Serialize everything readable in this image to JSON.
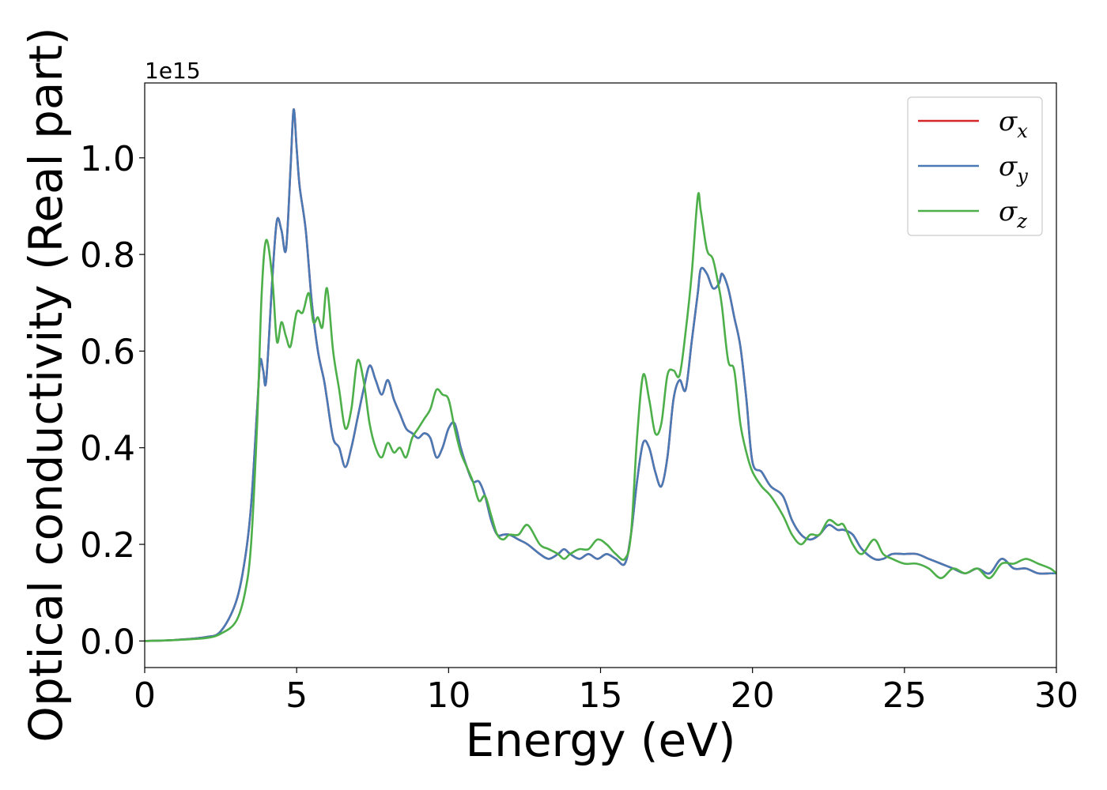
{
  "chart_data": {
    "type": "line",
    "title": "",
    "xlabel": "Energy (eV)",
    "ylabel": "Optical conductivity (Real part)",
    "y_offset_text": "1e15",
    "xlim": [
      0,
      30
    ],
    "ylim": [
      -0.055,
      1.155
    ],
    "x_ticks": [
      0,
      5,
      10,
      15,
      20,
      25,
      30
    ],
    "x_tick_labels": [
      "0",
      "5",
      "10",
      "15",
      "20",
      "25",
      "30"
    ],
    "y_ticks": [
      0.0,
      0.2,
      0.4,
      0.6,
      0.8,
      1.0
    ],
    "y_tick_labels": [
      "0.0",
      "0.2",
      "0.4",
      "0.6",
      "0.8",
      "1.0"
    ],
    "grid": false,
    "legend_position": "top-right",
    "series": [
      {
        "name": "σx",
        "symbol": "σ",
        "subscript": "x",
        "color": "#d62728",
        "x": [
          0,
          1,
          2,
          2.5,
          3,
          3.3,
          3.5,
          3.7,
          3.8,
          3.9,
          4.0,
          4.2,
          4.35,
          4.5,
          4.65,
          4.8,
          4.9,
          5.0,
          5.1,
          5.3,
          5.5,
          5.7,
          5.9,
          6.0,
          6.2,
          6.4,
          6.6,
          6.8,
          7.0,
          7.2,
          7.4,
          7.6,
          7.8,
          8.0,
          8.2,
          8.4,
          8.6,
          8.8,
          9.0,
          9.2,
          9.4,
          9.6,
          9.8,
          10.0,
          10.2,
          10.4,
          10.6,
          10.8,
          11.0,
          11.2,
          11.4,
          11.6,
          11.8,
          12.0,
          12.3,
          12.6,
          13.0,
          13.3,
          13.6,
          13.8,
          14.0,
          14.3,
          14.6,
          14.9,
          15.2,
          15.5,
          15.8,
          16.0,
          16.2,
          16.4,
          16.6,
          16.8,
          17.0,
          17.2,
          17.4,
          17.6,
          17.8,
          18.0,
          18.2,
          18.3,
          18.5,
          18.7,
          18.9,
          19.0,
          19.2,
          19.4,
          19.6,
          19.8,
          20.0,
          20.3,
          20.6,
          21.0,
          21.3,
          21.6,
          21.9,
          22.2,
          22.5,
          22.8,
          23.0,
          23.3,
          23.6,
          24.0,
          24.3,
          24.6,
          25.0,
          25.4,
          25.8,
          26.2,
          26.6,
          27.0,
          27.4,
          27.8,
          28.2,
          28.6,
          29.0,
          29.4,
          29.8,
          30.0
        ],
        "y": [
          0.0,
          0.002,
          0.008,
          0.02,
          0.08,
          0.17,
          0.28,
          0.48,
          0.58,
          0.56,
          0.54,
          0.75,
          0.87,
          0.85,
          0.81,
          0.98,
          1.1,
          1.02,
          0.94,
          0.85,
          0.7,
          0.6,
          0.54,
          0.5,
          0.42,
          0.4,
          0.36,
          0.4,
          0.46,
          0.52,
          0.57,
          0.54,
          0.51,
          0.54,
          0.5,
          0.47,
          0.44,
          0.43,
          0.42,
          0.43,
          0.42,
          0.38,
          0.4,
          0.44,
          0.45,
          0.4,
          0.36,
          0.33,
          0.33,
          0.3,
          0.25,
          0.22,
          0.22,
          0.22,
          0.21,
          0.2,
          0.18,
          0.17,
          0.18,
          0.19,
          0.18,
          0.17,
          0.18,
          0.17,
          0.18,
          0.17,
          0.16,
          0.22,
          0.33,
          0.41,
          0.4,
          0.35,
          0.32,
          0.38,
          0.5,
          0.54,
          0.52,
          0.62,
          0.72,
          0.77,
          0.76,
          0.73,
          0.74,
          0.76,
          0.73,
          0.67,
          0.61,
          0.5,
          0.37,
          0.35,
          0.32,
          0.3,
          0.25,
          0.22,
          0.21,
          0.22,
          0.24,
          0.23,
          0.23,
          0.22,
          0.19,
          0.17,
          0.17,
          0.18,
          0.18,
          0.18,
          0.17,
          0.16,
          0.15,
          0.14,
          0.15,
          0.14,
          0.17,
          0.15,
          0.15,
          0.14,
          0.14,
          0.14
        ]
      },
      {
        "name": "σy",
        "symbol": "σ",
        "subscript": "y",
        "color": "#4a7ab6",
        "x": [
          0,
          1,
          2,
          2.5,
          3,
          3.3,
          3.5,
          3.7,
          3.8,
          3.9,
          4.0,
          4.2,
          4.35,
          4.5,
          4.65,
          4.8,
          4.9,
          5.0,
          5.1,
          5.3,
          5.5,
          5.7,
          5.9,
          6.0,
          6.2,
          6.4,
          6.6,
          6.8,
          7.0,
          7.2,
          7.4,
          7.6,
          7.8,
          8.0,
          8.2,
          8.4,
          8.6,
          8.8,
          9.0,
          9.2,
          9.4,
          9.6,
          9.8,
          10.0,
          10.2,
          10.4,
          10.6,
          10.8,
          11.0,
          11.2,
          11.4,
          11.6,
          11.8,
          12.0,
          12.3,
          12.6,
          13.0,
          13.3,
          13.6,
          13.8,
          14.0,
          14.3,
          14.6,
          14.9,
          15.2,
          15.5,
          15.8,
          16.0,
          16.2,
          16.4,
          16.6,
          16.8,
          17.0,
          17.2,
          17.4,
          17.6,
          17.8,
          18.0,
          18.2,
          18.3,
          18.5,
          18.7,
          18.9,
          19.0,
          19.2,
          19.4,
          19.6,
          19.8,
          20.0,
          20.3,
          20.6,
          21.0,
          21.3,
          21.6,
          21.9,
          22.2,
          22.5,
          22.8,
          23.0,
          23.3,
          23.6,
          24.0,
          24.3,
          24.6,
          25.0,
          25.4,
          25.8,
          26.2,
          26.6,
          27.0,
          27.4,
          27.8,
          28.2,
          28.6,
          29.0,
          29.4,
          29.8,
          30.0
        ],
        "y": [
          0.0,
          0.002,
          0.008,
          0.02,
          0.08,
          0.17,
          0.28,
          0.48,
          0.58,
          0.56,
          0.54,
          0.75,
          0.87,
          0.85,
          0.81,
          0.98,
          1.1,
          1.02,
          0.94,
          0.85,
          0.7,
          0.6,
          0.54,
          0.5,
          0.42,
          0.4,
          0.36,
          0.4,
          0.46,
          0.52,
          0.57,
          0.54,
          0.51,
          0.54,
          0.5,
          0.47,
          0.44,
          0.43,
          0.42,
          0.43,
          0.42,
          0.38,
          0.4,
          0.44,
          0.45,
          0.4,
          0.36,
          0.33,
          0.33,
          0.3,
          0.25,
          0.22,
          0.22,
          0.22,
          0.21,
          0.2,
          0.18,
          0.17,
          0.18,
          0.19,
          0.18,
          0.17,
          0.18,
          0.17,
          0.18,
          0.17,
          0.16,
          0.22,
          0.33,
          0.41,
          0.4,
          0.35,
          0.32,
          0.38,
          0.5,
          0.54,
          0.52,
          0.62,
          0.72,
          0.77,
          0.76,
          0.73,
          0.74,
          0.76,
          0.73,
          0.67,
          0.61,
          0.5,
          0.37,
          0.35,
          0.32,
          0.3,
          0.25,
          0.22,
          0.21,
          0.22,
          0.24,
          0.23,
          0.23,
          0.22,
          0.19,
          0.17,
          0.17,
          0.18,
          0.18,
          0.18,
          0.17,
          0.16,
          0.15,
          0.14,
          0.15,
          0.14,
          0.17,
          0.15,
          0.15,
          0.14,
          0.14,
          0.14
        ]
      },
      {
        "name": "σz",
        "symbol": "σ",
        "subscript": "z",
        "color": "#4daf4a",
        "x": [
          0,
          1,
          2,
          2.5,
          3,
          3.3,
          3.5,
          3.7,
          3.85,
          4.0,
          4.2,
          4.35,
          4.5,
          4.65,
          4.8,
          5.0,
          5.2,
          5.4,
          5.55,
          5.7,
          5.85,
          6.0,
          6.2,
          6.4,
          6.6,
          6.8,
          7.0,
          7.2,
          7.4,
          7.6,
          7.8,
          8.0,
          8.2,
          8.4,
          8.6,
          8.8,
          9.0,
          9.2,
          9.4,
          9.6,
          9.8,
          10.0,
          10.2,
          10.4,
          10.6,
          10.8,
          11.0,
          11.2,
          11.4,
          11.6,
          11.8,
          12.0,
          12.3,
          12.6,
          13.0,
          13.3,
          13.6,
          13.8,
          14.0,
          14.3,
          14.6,
          14.9,
          15.2,
          15.5,
          15.8,
          16.0,
          16.2,
          16.4,
          16.6,
          16.8,
          17.0,
          17.2,
          17.4,
          17.6,
          17.8,
          18.0,
          18.2,
          18.3,
          18.5,
          18.7,
          18.9,
          19.0,
          19.2,
          19.4,
          19.6,
          19.8,
          20.0,
          20.3,
          20.6,
          21.0,
          21.3,
          21.6,
          21.9,
          22.2,
          22.5,
          22.8,
          23.0,
          23.3,
          23.6,
          24.0,
          24.3,
          24.6,
          25.0,
          25.4,
          25.8,
          26.2,
          26.6,
          27.0,
          27.4,
          27.8,
          28.2,
          28.6,
          29.0,
          29.4,
          29.8,
          30.0
        ],
        "y": [
          0.0,
          0.002,
          0.006,
          0.015,
          0.04,
          0.1,
          0.2,
          0.45,
          0.72,
          0.83,
          0.75,
          0.62,
          0.66,
          0.63,
          0.61,
          0.68,
          0.68,
          0.72,
          0.66,
          0.67,
          0.65,
          0.73,
          0.6,
          0.52,
          0.44,
          0.48,
          0.58,
          0.54,
          0.45,
          0.4,
          0.38,
          0.41,
          0.39,
          0.4,
          0.38,
          0.42,
          0.44,
          0.46,
          0.48,
          0.52,
          0.51,
          0.5,
          0.44,
          0.39,
          0.36,
          0.33,
          0.29,
          0.3,
          0.26,
          0.22,
          0.21,
          0.22,
          0.22,
          0.24,
          0.2,
          0.19,
          0.18,
          0.17,
          0.18,
          0.19,
          0.19,
          0.21,
          0.2,
          0.18,
          0.17,
          0.22,
          0.42,
          0.55,
          0.5,
          0.43,
          0.45,
          0.55,
          0.56,
          0.55,
          0.64,
          0.76,
          0.92,
          0.89,
          0.81,
          0.79,
          0.73,
          0.69,
          0.58,
          0.56,
          0.45,
          0.39,
          0.35,
          0.32,
          0.3,
          0.26,
          0.22,
          0.2,
          0.22,
          0.22,
          0.25,
          0.24,
          0.24,
          0.2,
          0.18,
          0.21,
          0.18,
          0.17,
          0.16,
          0.16,
          0.15,
          0.13,
          0.15,
          0.14,
          0.15,
          0.13,
          0.16,
          0.16,
          0.17,
          0.16,
          0.15,
          0.14
        ]
      }
    ]
  }
}
